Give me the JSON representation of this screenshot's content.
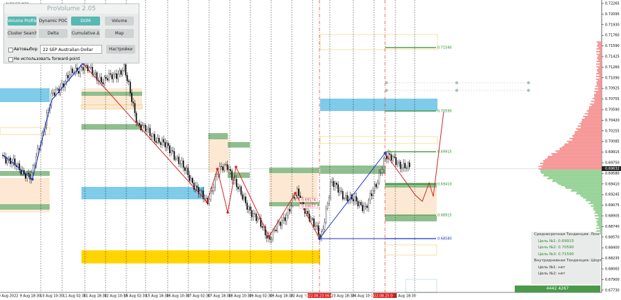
{
  "window": {
    "symbol": "AUDUSD,M30"
  },
  "panel": {
    "title": "ProVolume 2.05",
    "buttons": [
      "Volume Profile",
      "Dynamic POC",
      "DOM",
      "Volume",
      "Cluster Search",
      "Delta",
      "Cumulative Δ",
      "Map"
    ],
    "auto_select": "Автовыбор",
    "instrument": "22 SEP Australian Dollar",
    "settings": "Настройки",
    "forward_point": "Не использовать forward-point"
  },
  "price_axis": {
    "labels": [
      "0.72265",
      "0.72095",
      "0.71930",
      "0.71760",
      "0.71590",
      "0.71425",
      "0.71260",
      "0.71090",
      "0.70925",
      "0.70755",
      "0.70590",
      "0.70420",
      "0.70255",
      "0.70085",
      "0.69915",
      "0.69750",
      "0.69580",
      "0.69410",
      "0.69245",
      "0.69075",
      "0.68905",
      "0.68740",
      "0.68570",
      "0.68400",
      "0.68235",
      "0.68065",
      "0.67900",
      "0.67730"
    ],
    "current": "0.69632"
  },
  "time_axis": {
    "labels": [
      "9 Aug 2022",
      "9 Aug 18:30",
      "10 Aug 10:30",
      "11 Aug 02:30",
      "11 Aug 18:30",
      "12 Aug 10:30",
      "15 Aug 02:30",
      "15 Aug 18:30",
      "16 Aug 10:30",
      "17 Aug 02:30",
      "17 Aug 18:30",
      "18 Aug 10:30",
      "19 Aug 02:30",
      "19 Aug 18:30",
      "22 Aug 10:30",
      "2022.08.23 06:00",
      "23 Aug 18:30",
      "24 Aug 10:30",
      "2022.08.25 02:00",
      "25 Aug 18:30"
    ]
  },
  "levels": [
    "0.71590",
    "0.70590",
    "0.69915",
    "0.69410",
    "0.68915",
    "0.68580"
  ],
  "markers": [
    "0.69174",
    "0.69057"
  ],
  "info": {
    "lines": [
      "Среднесрочная Тенденция: Лонг",
      "Цель №1: 0.69915",
      "Цель №2: 0.70590",
      "Цель №3: 0.71590",
      "Внутридневная Тенденция: Шорт",
      "Цель №1: нет",
      "Цель №2: нет"
    ]
  },
  "volume": "4442 4267"
}
